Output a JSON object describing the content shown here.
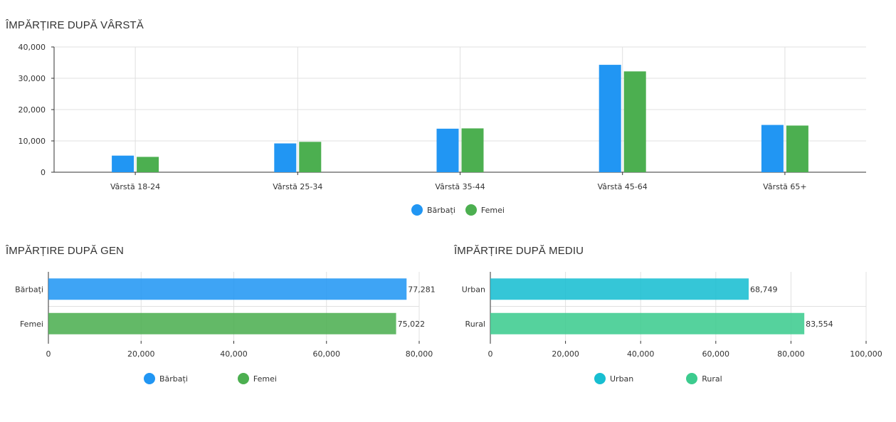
{
  "colors": {
    "barbati": "#2196F3",
    "femei": "#4CAF50",
    "urban": "#17BED1",
    "rural": "#3CCB8E"
  },
  "age_panel": {
    "title": "ÎMPĂRȚIRE DUPĂ VÂRSTĂ",
    "legend": [
      "Bărbați",
      "Femei"
    ]
  },
  "gender_panel": {
    "title": "ÎMPĂRȚIRE DUPĂ GEN",
    "legend": [
      "Bărbați",
      "Femei"
    ]
  },
  "env_panel": {
    "title": "ÎMPĂRȚIRE DUPĂ MEDIU",
    "legend": [
      "Urban",
      "Rural"
    ]
  },
  "chart_data": [
    {
      "type": "bar",
      "title": "ÎMPĂRȚIRE DUPĂ VÂRSTĂ",
      "categories": [
        "Vârstă 18-24",
        "Vârstă 25-34",
        "Vârstă 35-44",
        "Vârstă 45-64",
        "Vârstă 65+"
      ],
      "series": [
        {
          "name": "Bărbați",
          "values": [
            5300,
            9200,
            13900,
            34300,
            15100
          ]
        },
        {
          "name": "Femei",
          "values": [
            4900,
            9700,
            14000,
            32200,
            14900
          ]
        }
      ],
      "ylim": [
        0,
        40000
      ],
      "yticks": [
        "0",
        "10,000",
        "20,000",
        "30,000",
        "40,000"
      ],
      "grid": true,
      "legend": "bottom-center"
    },
    {
      "type": "bar",
      "orientation": "horizontal",
      "title": "ÎMPĂRȚIRE DUPĂ GEN",
      "categories": [
        "Bărbați",
        "Femei"
      ],
      "values": [
        77281,
        75022
      ],
      "labels": [
        "77,281",
        "75,022"
      ],
      "xlim": [
        0,
        80000
      ],
      "xticks": [
        "0",
        "20,000",
        "40,000",
        "60,000",
        "80,000"
      ],
      "grid": true,
      "legend": "bottom-center"
    },
    {
      "type": "bar",
      "orientation": "horizontal",
      "title": "ÎMPĂRȚIRE DUPĂ MEDIU",
      "categories": [
        "Urban",
        "Rural"
      ],
      "values": [
        68749,
        83554
      ],
      "labels": [
        "68,749",
        "83,554"
      ],
      "xlim": [
        0,
        100000
      ],
      "xticks": [
        "0",
        "20,000",
        "40,000",
        "60,000",
        "80,000",
        "100,000"
      ],
      "grid": true,
      "legend": "bottom-center"
    }
  ]
}
